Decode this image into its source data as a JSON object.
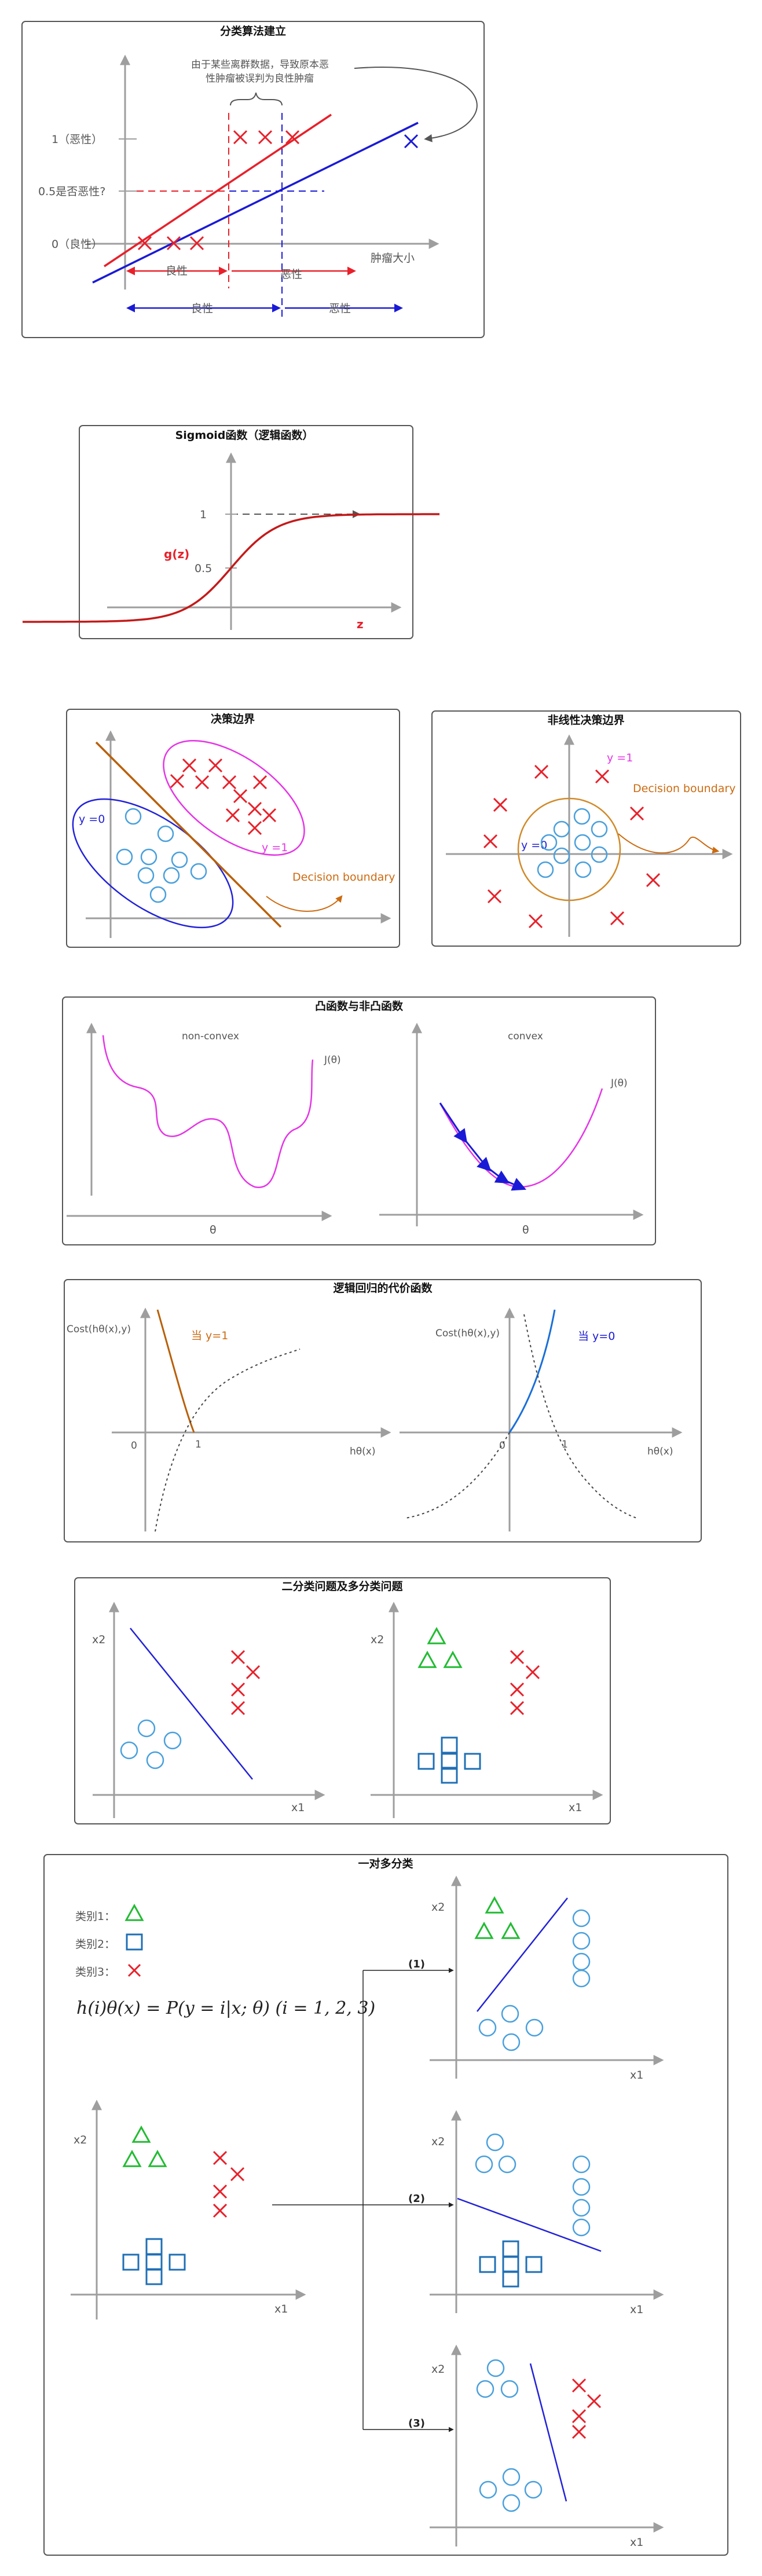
{
  "colors": {
    "red": "#e8202a",
    "blue": "#1a1ad6",
    "orange": "#cc6a10",
    "magenta": "#e535e5",
    "lightblue": "#4aa0dc",
    "green": "#22bb33",
    "squareblue": "#1f6fb5",
    "axis": "#9e9e9e",
    "text": "#555555"
  },
  "panel1": {
    "title": "分类算法建立",
    "annotation_line1": "由于某些离群数据，导致原本恶",
    "annotation_line2": "性肿瘤被误判为良性肿瘤",
    "y_label_1": "1（恶性）",
    "y_label_05": "0.5是否恶性?",
    "y_label_0": "0（良性）",
    "x_label": "肿瘤大小",
    "red_benign": "良性",
    "red_malignant": "恶性",
    "blue_benign": "良性",
    "blue_malignant": "恶性"
  },
  "panel2": {
    "title": "Sigmoid函数（逻辑函数）",
    "y1": "1",
    "y05": "0.5",
    "func_label": "g(z)",
    "x_label": "z"
  },
  "panel3a": {
    "title": "决策边界",
    "y0": "y =0",
    "y1": "y =1",
    "boundary": "Decision boundary"
  },
  "panel3b": {
    "title": "非线性决策边界",
    "y1": "y =1",
    "y0": "y =0",
    "boundary": "Decision boundary"
  },
  "panel4": {
    "title": "凸函数与非凸函数",
    "left_title": "non-convex",
    "right_title": "convex",
    "left_j": "J(θ)",
    "right_j": "J(θ)",
    "left_x": "θ",
    "right_x": "θ"
  },
  "panel5": {
    "title": "逻辑回归的代价函数",
    "left_ylabel": "Cost(hθ(x),y)",
    "left_case": "当 y=1",
    "left_zero": "0",
    "left_one": "1",
    "left_xlabel": "hθ(x)",
    "right_ylabel": "Cost(hθ(x),y)",
    "right_case": "当 y=0",
    "right_zero": "0",
    "right_one": "1",
    "right_xlabel": "hθ(x)"
  },
  "panel6": {
    "title": "二分类问题及多分类问题",
    "left_y": "x2",
    "left_x": "x1",
    "right_y": "x2",
    "right_x": "x1"
  },
  "panel7": {
    "title": "一对多分类",
    "legend1": "类别1：",
    "legend2": "类别2：",
    "legend3": "类别3：",
    "formula": "h(i)θ(x) = P(y = i|x; θ)   (i = 1, 2, 3)",
    "main_y": "x2",
    "main_x": "x1",
    "step1": "(1)",
    "step2": "(2)",
    "step3": "(3)",
    "sub_y": "x2",
    "sub_x": "x1"
  }
}
